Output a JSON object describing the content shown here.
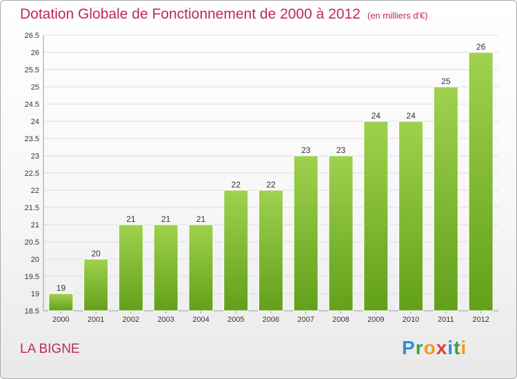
{
  "header": {
    "title": "Dotation Globale de Fonctionnement de 2000 à 2012",
    "subtitle": "(en milliers d'€)"
  },
  "place": "LA BIGNE",
  "logo": {
    "letters": [
      "P",
      "r",
      "o",
      "x",
      "i",
      "t",
      "i"
    ],
    "colors": [
      "#2f8fd8",
      "#3aa23a",
      "#f39a1e",
      "#e53a3a",
      "#2f8fd8",
      "#3aa23a",
      "#f39a1e"
    ]
  },
  "chart_data": {
    "type": "bar",
    "title": "Dotation Globale de Fonctionnement de 2000 à 2012",
    "subtitle": "(en milliers d'€)",
    "categories": [
      "2000",
      "2001",
      "2002",
      "2003",
      "2004",
      "2005",
      "2006",
      "2007",
      "2008",
      "2009",
      "2010",
      "2011",
      "2012"
    ],
    "values": [
      19,
      20,
      21,
      21,
      21,
      22,
      22,
      23,
      23,
      24,
      24,
      25,
      26
    ],
    "ylim": [
      18.5,
      26.5
    ],
    "yticks": [
      18.5,
      19,
      19.5,
      20,
      20.5,
      21,
      21.5,
      22,
      22.5,
      23,
      23.5,
      24,
      24.5,
      25,
      25.5,
      26,
      26.5
    ],
    "grid": true,
    "bar_color": "#7fba35",
    "xlabel": "",
    "ylabel": ""
  }
}
